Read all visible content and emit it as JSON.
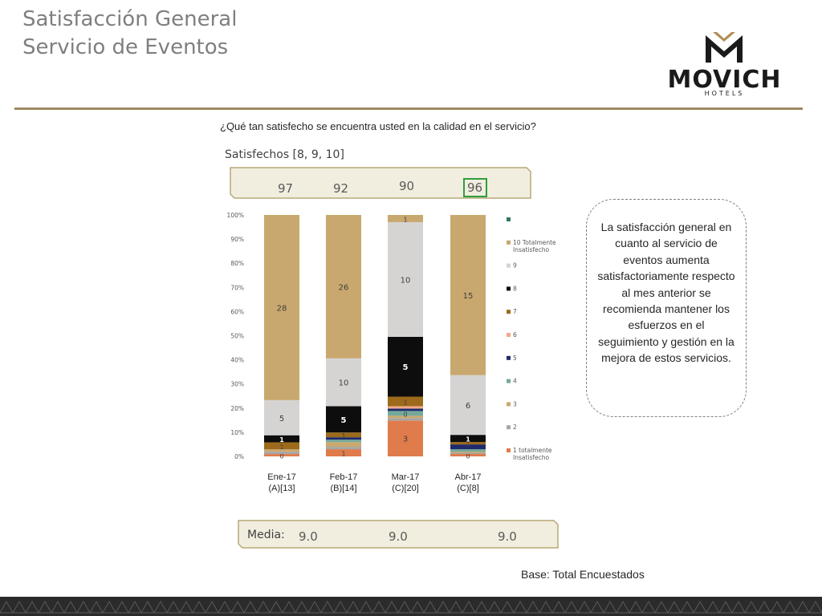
{
  "header": {
    "title_line1": "Satisfacción General",
    "title_line2": "Servicio de Eventos"
  },
  "logo": {
    "word": "MOVICH",
    "sub": "HOTELS"
  },
  "question": "¿Qué tan satisfecho se encuentra usted en la calidad en el servicio?",
  "satisfied": {
    "label": "Satisfechos [8, 9, 10]",
    "values": [
      "97",
      "92",
      "90",
      "96"
    ]
  },
  "callout": "La satisfacción general en cuanto al servicio de eventos aumenta satisfactoriamente respecto al mes anterior  se recomienda mantener los esfuerzos en el seguimiento y gestión en la mejora de estos servicios.",
  "media": {
    "label": "Media:",
    "values": [
      "9.0",
      "9.0",
      "9.0"
    ]
  },
  "base": "Base: Total Encuestados",
  "colors": {
    "accent_rule": "#9e8a63",
    "highlight": "#2e9e3f"
  },
  "chart_data": {
    "type": "bar",
    "stacked": true,
    "ylim": [
      0,
      100
    ],
    "yticks": [
      "0%",
      "10%",
      "20%",
      "30%",
      "40%",
      "50%",
      "60%",
      "70%",
      "80%",
      "90%",
      "100%"
    ],
    "categories": [
      [
        "Ene-17",
        "(A)[13]"
      ],
      [
        "Feb-17",
        "(B)[14]"
      ],
      [
        "Mar-17",
        "(C)[20]"
      ],
      [
        "Abr-17",
        "(C)[8]"
      ]
    ],
    "legend_position": "right",
    "series": [
      {
        "name": "1 totalmente Insatisfecho",
        "color": "#e07b4c",
        "values": [
          1,
          3,
          15,
          1
        ],
        "labels": [
          "0",
          "1",
          "3",
          "0"
        ]
      },
      {
        "name": "2",
        "color": "#a5a5a5",
        "values": [
          1,
          1,
          1,
          0.5
        ],
        "labels": [
          "",
          "",
          "",
          ""
        ]
      },
      {
        "name": "3",
        "color": "#c9a96e",
        "values": [
          1,
          2,
          1,
          0.5
        ],
        "labels": [
          "",
          "",
          "",
          ""
        ]
      },
      {
        "name": "4",
        "color": "#74a99b",
        "values": [
          0,
          1,
          2,
          1
        ],
        "labels": [
          "",
          "",
          "0",
          ""
        ]
      },
      {
        "name": "5",
        "color": "#1f2a6b",
        "values": [
          0,
          1,
          1,
          2
        ],
        "labels": [
          "",
          "",
          "",
          ""
        ]
      },
      {
        "name": "6",
        "color": "#f2a98b",
        "values": [
          0,
          0,
          1,
          0
        ],
        "labels": [
          "",
          "",
          "",
          ""
        ]
      },
      {
        "name": "7",
        "color": "#9c6a1a",
        "values": [
          3,
          2,
          4,
          1
        ],
        "labels": [
          "1",
          "1",
          "1",
          "1"
        ]
      },
      {
        "name": "8",
        "color": "#0d0d0d",
        "values": [
          3,
          11,
          25,
          3
        ],
        "labels": [
          "1",
          "5",
          "5",
          "1"
        ]
      },
      {
        "name": "9",
        "color": "#d6d3d3",
        "values": [
          15,
          20,
          48,
          25
        ],
        "labels": [
          "5",
          "10",
          "10",
          "6"
        ]
      },
      {
        "name": "10 Totalmente Insatisfecho",
        "color": "#c8a86e",
        "values": [
          79,
          60,
          3,
          67
        ],
        "labels": [
          "28",
          "26",
          "1",
          "15"
        ]
      },
      {
        "name": "",
        "color": "#2e7a5a",
        "values": [
          0,
          0,
          0,
          0
        ],
        "labels": [
          "",
          "",
          "",
          ""
        ]
      }
    ]
  }
}
